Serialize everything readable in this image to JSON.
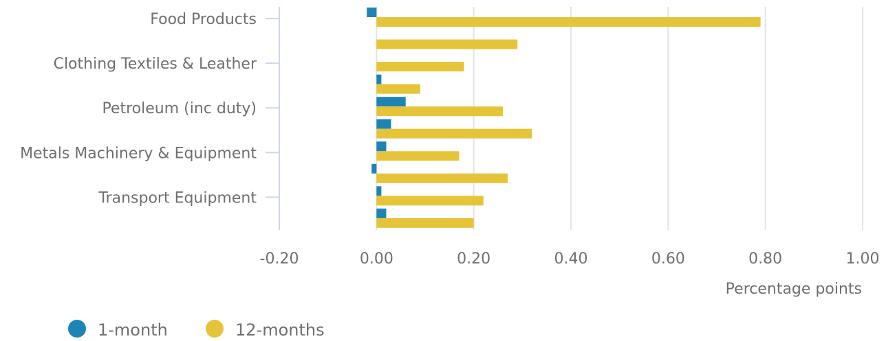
{
  "chart_data": {
    "type": "bar",
    "orientation": "horizontal",
    "title": "",
    "xlabel": "Percentage points",
    "xlim": [
      -0.2,
      1.0
    ],
    "xticks": [
      -0.2,
      0.0,
      0.2,
      0.4,
      0.6,
      0.8,
      1.0
    ],
    "xtick_labels": [
      "-0.20",
      "0.00",
      "0.20",
      "0.40",
      "0.60",
      "0.80",
      "1.00"
    ],
    "grid": true,
    "legend_position": "bottom-left",
    "categories": [
      "Food Products",
      "",
      "Clothing Textiles & Leather",
      "",
      "Petroleum (inc duty)",
      "",
      "Metals Machinery & Equipment",
      "",
      "Transport Equipment",
      ""
    ],
    "series": [
      {
        "name": "1-month",
        "color": "#1d84b5",
        "values": [
          -0.02,
          0.0,
          0.0,
          0.01,
          0.06,
          0.03,
          0.02,
          -0.01,
          0.01,
          0.02
        ]
      },
      {
        "name": "12-months",
        "color": "#e6c43a",
        "values": [
          0.79,
          0.29,
          0.18,
          0.09,
          0.26,
          0.32,
          0.17,
          0.27,
          0.22,
          0.2
        ]
      }
    ]
  }
}
